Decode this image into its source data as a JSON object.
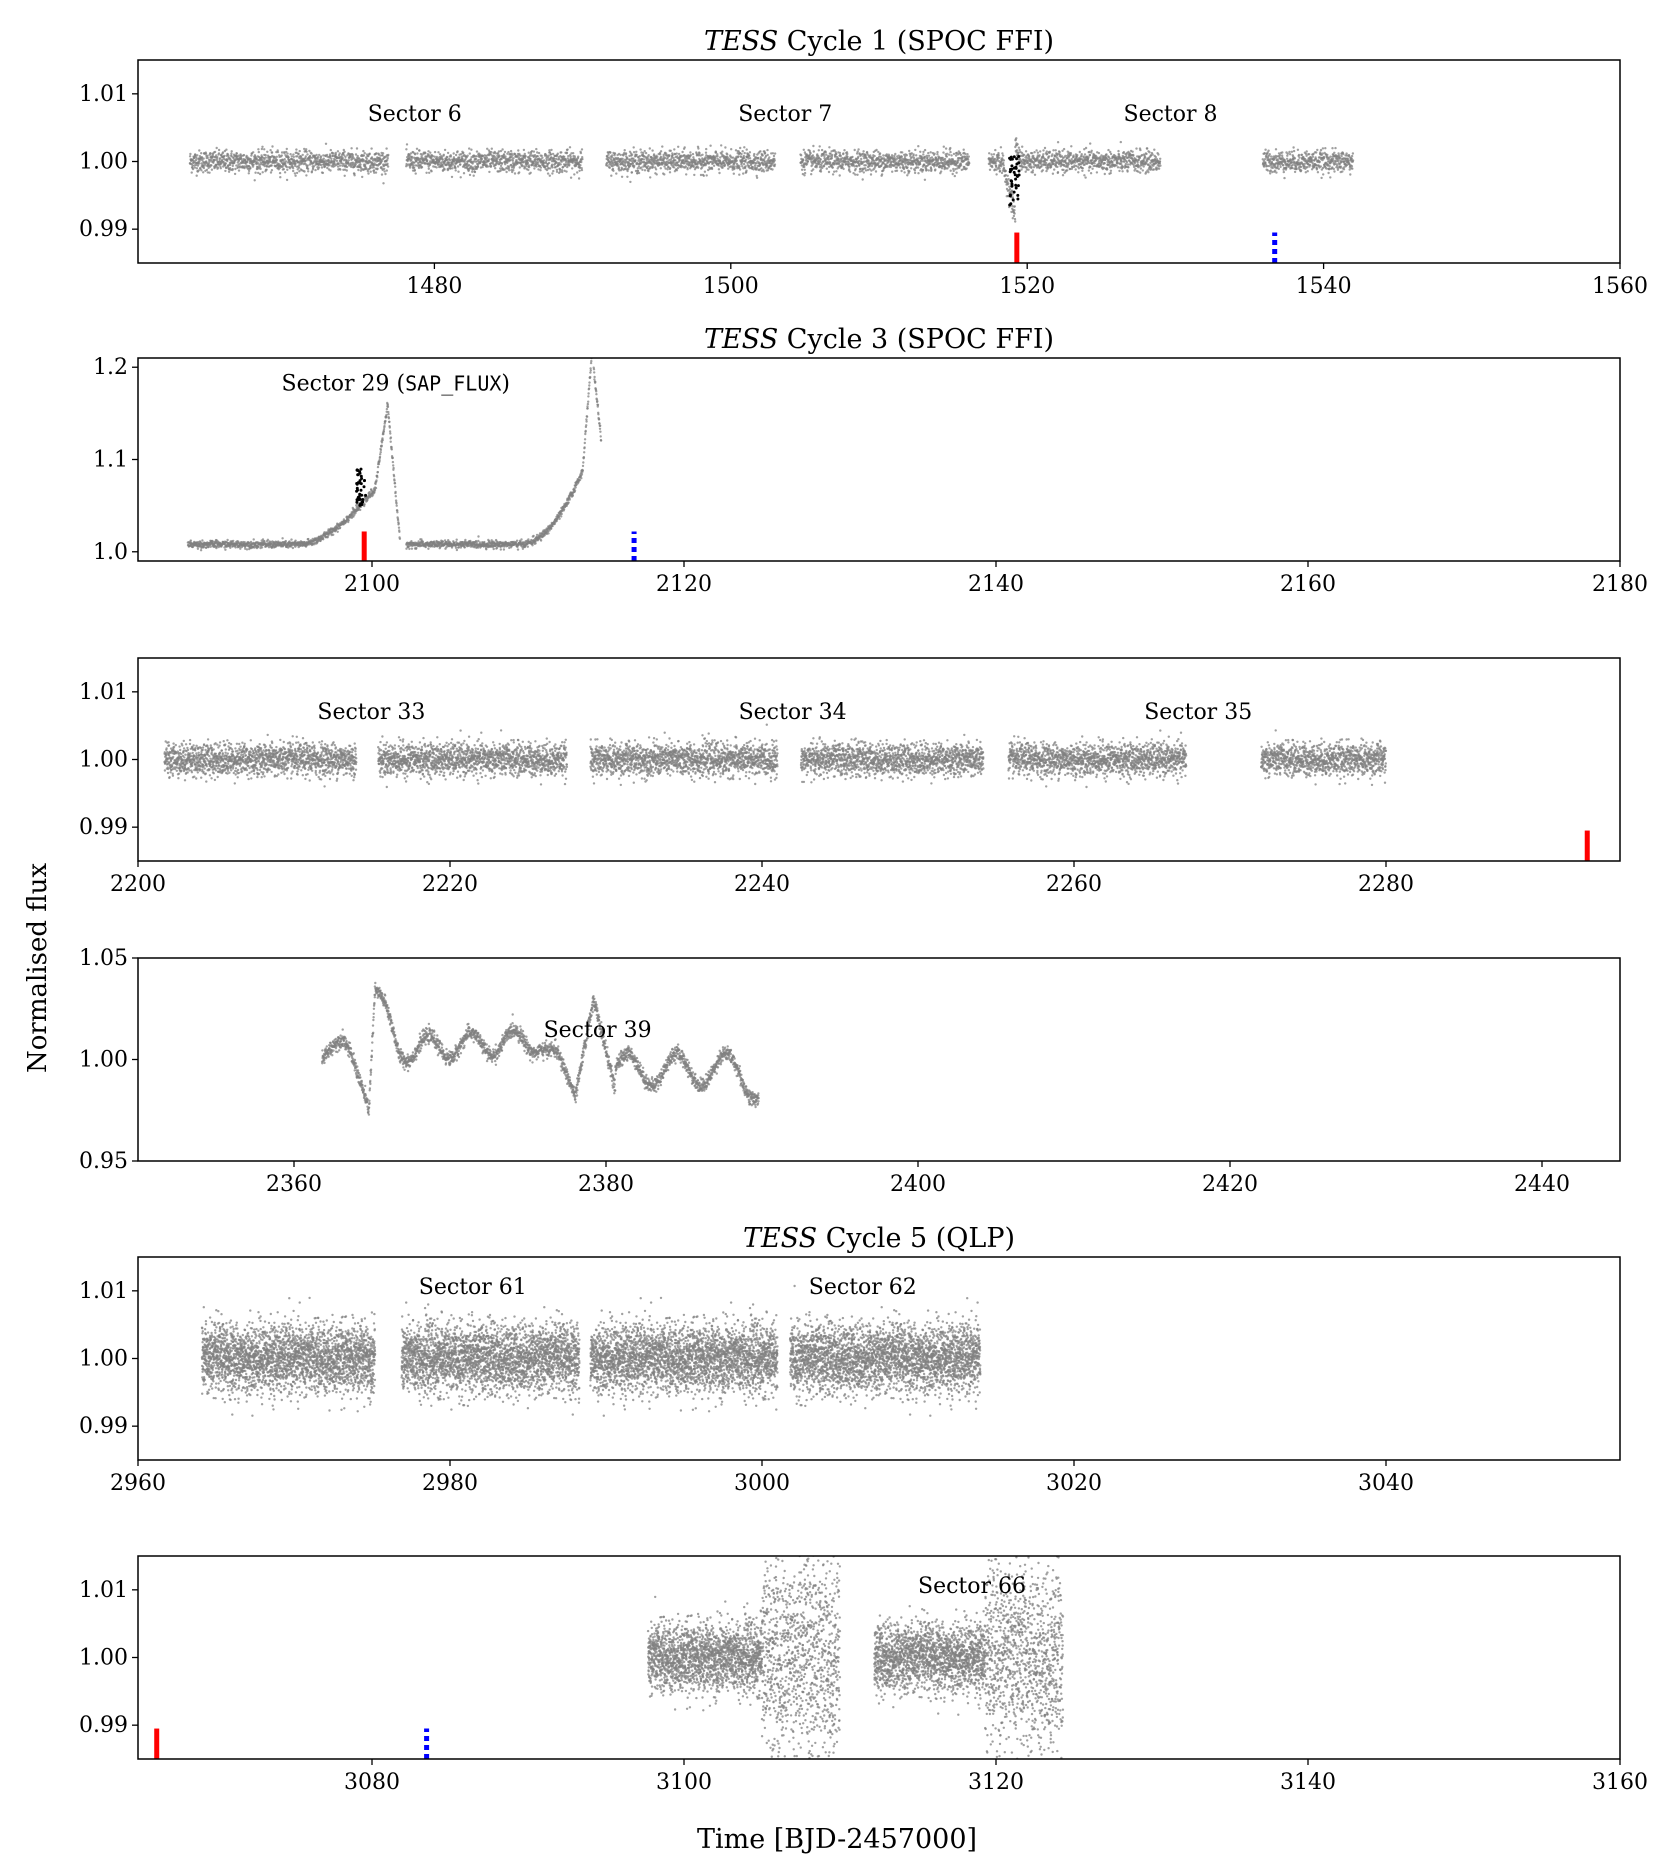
{
  "figure": {
    "ylabel": "Normalised flux",
    "xlabel": "Time [BJD-2457000]"
  },
  "colors": {
    "data": "#808080",
    "highlight": "#000000",
    "primary_marker": "#ff0000",
    "secondary_marker": "#0000ff"
  },
  "chart_data": [
    {
      "type": "scatter",
      "title_em": "TESS",
      "title_rest": " Cycle 1 (SPOC FFI)",
      "xlim": [
        1460,
        1560
      ],
      "ylim": [
        0.985,
        1.015
      ],
      "xticks": [
        1480,
        1500,
        1520,
        1540,
        1560
      ],
      "yticks": [
        0.99,
        1.0,
        1.01
      ],
      "ytick_labels": [
        "0.99",
        "1.00",
        "1.01"
      ],
      "sectors": [
        {
          "label": "Sector 6",
          "x": 1475.5,
          "y": 1.006
        },
        {
          "label": "Sector 7",
          "x": 1500.5,
          "y": 1.006
        },
        {
          "label": "Sector 8",
          "x": 1526.5,
          "y": 1.006
        }
      ],
      "segments": [
        {
          "x0": 1463.5,
          "x1": 1476.9,
          "level": 1.0,
          "noise": 0.0008,
          "density": 80
        },
        {
          "x0": 1478.1,
          "x1": 1490.0,
          "level": 1.0,
          "noise": 0.0008,
          "density": 80
        },
        {
          "x0": 1491.6,
          "x1": 1503.0,
          "level": 1.0,
          "noise": 0.0008,
          "density": 80
        },
        {
          "x0": 1504.7,
          "x1": 1516.1,
          "level": 1.0,
          "noise": 0.0008,
          "density": 80
        },
        {
          "x0": 1517.4,
          "x1": 1529.0,
          "level": 1.0,
          "noise": 0.0008,
          "density": 80
        },
        {
          "x0": 1535.9,
          "x1": 1542.0,
          "level": 1.0,
          "noise": 0.0008,
          "density": 80
        }
      ],
      "features": [
        {
          "shape": "dip",
          "x": 1519.2,
          "depth": 0.008,
          "width": 0.9,
          "bump": 0.0025
        }
      ],
      "highlight": [
        {
          "x0": 1518.8,
          "x1": 1519.5,
          "y0": 0.993,
          "y1": 1.001
        }
      ],
      "markers": [
        {
          "x": 1519.3,
          "style": "solid",
          "color": "primary_marker",
          "y0": 0.985,
          "y1": 0.9895
        },
        {
          "x": 1536.7,
          "style": "dotted",
          "color": "secondary_marker",
          "y0": 0.985,
          "y1": 0.9895
        }
      ]
    },
    {
      "type": "scatter",
      "title_em": "TESS",
      "title_rest": " Cycle 3 (SPOC FFI)",
      "xlim": [
        2085,
        2180
      ],
      "ylim": [
        0.99,
        1.21
      ],
      "xticks": [
        2100,
        2120,
        2140,
        2160,
        2180
      ],
      "yticks": [
        1.0,
        1.1,
        1.2
      ],
      "ytick_labels": [
        "1.0",
        "1.1",
        "1.2"
      ],
      "sectors": [
        {
          "label": "Sector 29 (",
          "label_mono": "SAP_FLUX",
          "label_end": ")",
          "x": 2094.2,
          "y": 1.175
        }
      ],
      "segments": [
        {
          "x0": 2088.2,
          "x1": 2101.8,
          "level": 1.008,
          "noise": 0.002,
          "density": 70,
          "curve": "s29a"
        },
        {
          "x0": 2102.2,
          "x1": 2114.7,
          "level": 1.008,
          "noise": 0.002,
          "density": 70,
          "curve": "s29b"
        }
      ],
      "features": [],
      "highlight": [
        {
          "x0": 2099.0,
          "x1": 2099.6,
          "y0": 1.05,
          "y1": 1.09
        }
      ],
      "markers": [
        {
          "x": 2099.5,
          "style": "solid",
          "color": "primary_marker",
          "y0": 0.99,
          "y1": 1.022
        },
        {
          "x": 2116.8,
          "style": "dotted",
          "color": "secondary_marker",
          "y0": 0.99,
          "y1": 1.022
        }
      ]
    },
    {
      "type": "scatter",
      "title_em": "",
      "title_rest": "",
      "xlim": [
        2200,
        2295
      ],
      "ylim": [
        0.985,
        1.015
      ],
      "xticks": [
        2200,
        2220,
        2240,
        2260,
        2280
      ],
      "yticks": [
        0.99,
        1.0,
        1.01
      ],
      "ytick_labels": [
        "0.99",
        "1.00",
        "1.01"
      ],
      "sectors": [
        {
          "label": "Sector 33",
          "x": 2211.5,
          "y": 1.006
        },
        {
          "label": "Sector 34",
          "x": 2238.5,
          "y": 1.006
        },
        {
          "label": "Sector 35",
          "x": 2264.5,
          "y": 1.006
        }
      ],
      "segments": [
        {
          "x0": 2201.7,
          "x1": 2214.0,
          "level": 1.0,
          "noise": 0.0012,
          "density": 130
        },
        {
          "x0": 2215.4,
          "x1": 2227.5,
          "level": 1.0,
          "noise": 0.0012,
          "density": 130
        },
        {
          "x0": 2229.0,
          "x1": 2241.0,
          "level": 1.0,
          "noise": 0.0012,
          "density": 130
        },
        {
          "x0": 2242.5,
          "x1": 2254.2,
          "level": 1.0,
          "noise": 0.0012,
          "density": 130
        },
        {
          "x0": 2255.8,
          "x1": 2267.2,
          "level": 1.0,
          "noise": 0.0012,
          "density": 130
        },
        {
          "x0": 2272.0,
          "x1": 2280.0,
          "level": 1.0,
          "noise": 0.0012,
          "density": 130
        }
      ],
      "features": [],
      "highlight": [],
      "markers": [
        {
          "x": 2292.9,
          "style": "solid",
          "color": "primary_marker",
          "y0": 0.985,
          "y1": 0.9895
        }
      ]
    },
    {
      "type": "scatter",
      "title_em": "",
      "title_rest": "",
      "xlim": [
        2350,
        2445
      ],
      "ylim": [
        0.95,
        1.05
      ],
      "xticks": [
        2360,
        2380,
        2400,
        2420,
        2440
      ],
      "yticks": [
        0.95,
        1.0,
        1.05
      ],
      "ytick_labels": [
        "0.95",
        "1.00",
        "1.05"
      ],
      "sectors": [
        {
          "label": "Sector 39",
          "x": 2376.0,
          "y": 1.011
        }
      ],
      "segments": [
        {
          "x0": 2361.8,
          "x1": 2375.8,
          "level": 1.0,
          "noise": 0.0018,
          "density": 90,
          "curve": "s39a"
        },
        {
          "x0": 2375.8,
          "x1": 2389.8,
          "level": 1.0,
          "noise": 0.0018,
          "density": 90,
          "curve": "s39b"
        }
      ],
      "features": [],
      "highlight": [],
      "markers": []
    },
    {
      "type": "scatter",
      "title_em": "TESS",
      "title_rest": " Cycle 5 (QLP)",
      "xlim": [
        2960,
        3055
      ],
      "ylim": [
        0.985,
        1.015
      ],
      "xticks": [
        2960,
        2980,
        3000,
        3020,
        3040
      ],
      "yticks": [
        0.99,
        1.0,
        1.01
      ],
      "ytick_labels": [
        "0.99",
        "1.00",
        "1.01"
      ],
      "sectors": [
        {
          "label": "Sector 61",
          "x": 2978.0,
          "y": 1.0095
        },
        {
          "label": "Sector 62",
          "x": 3003.0,
          "y": 1.0095
        }
      ],
      "segments": [
        {
          "x0": 2964.1,
          "x1": 2975.2,
          "level": 1.0,
          "noise": 0.0025,
          "density": 260
        },
        {
          "x0": 2976.9,
          "x1": 2988.3,
          "level": 1.0,
          "noise": 0.0025,
          "density": 260
        },
        {
          "x0": 2989.0,
          "x1": 3001.0,
          "level": 1.0,
          "noise": 0.0025,
          "density": 260
        },
        {
          "x0": 3001.8,
          "x1": 3014.0,
          "level": 1.0,
          "noise": 0.0025,
          "density": 260
        }
      ],
      "features": [],
      "highlight": [],
      "markers": []
    },
    {
      "type": "scatter",
      "title_em": "",
      "title_rest": "",
      "xlim": [
        3065,
        3160
      ],
      "ylim": [
        0.985,
        1.015
      ],
      "xticks": [
        3080,
        3100,
        3120,
        3140,
        3160
      ],
      "yticks": [
        0.99,
        1.0,
        1.01
      ],
      "ytick_labels": [
        "0.99",
        "1.00",
        "1.01"
      ],
      "sectors": [
        {
          "label": "Sector 66",
          "x": 3115.0,
          "y": 1.0095
        }
      ],
      "segments": [
        {
          "x0": 3097.7,
          "x1": 3105.0,
          "level": 1.0,
          "noise": 0.0025,
          "density": 260
        },
        {
          "x0": 3105.0,
          "x1": 3110.0,
          "level": 1.0,
          "noise": 0.008,
          "density": 220
        },
        {
          "x0": 3112.2,
          "x1": 3119.3,
          "level": 1.0,
          "noise": 0.0025,
          "density": 260
        },
        {
          "x0": 3119.3,
          "x1": 3124.3,
          "level": 1.0,
          "noise": 0.007,
          "density": 220
        }
      ],
      "features": [],
      "highlight": [],
      "markers": [
        {
          "x": 3066.2,
          "style": "solid",
          "color": "primary_marker",
          "y0": 0.985,
          "y1": 0.9895
        },
        {
          "x": 3083.5,
          "style": "dotted",
          "color": "secondary_marker",
          "y0": 0.985,
          "y1": 0.9895
        }
      ]
    }
  ]
}
